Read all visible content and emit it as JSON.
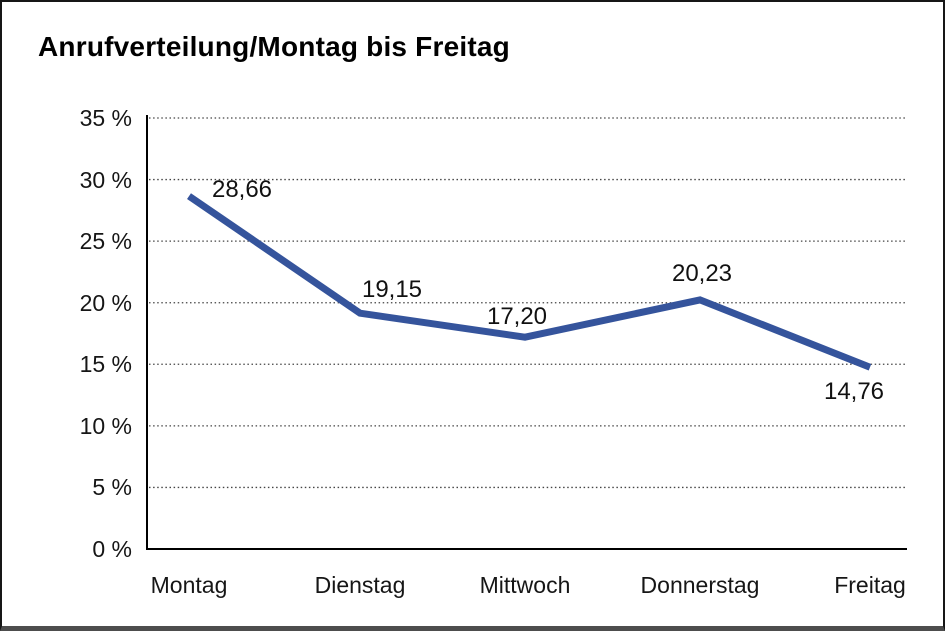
{
  "window": {
    "title": "Anrufverteilung/Montag bis Freitag"
  },
  "chart_data": {
    "type": "line",
    "title": "Anrufverteilung/Montag bis Freitag",
    "categories": [
      "Montag",
      "Dienstag",
      "Mittwoch",
      "Donnerstag",
      "Freitag"
    ],
    "series": [
      {
        "name": "Anrufverteilung",
        "values": [
          28.66,
          19.15,
          17.2,
          20.23,
          14.76
        ]
      }
    ],
    "point_labels": [
      "28,66",
      "19,15",
      "17,20",
      "20,23",
      "14,76"
    ],
    "ytick_labels": [
      "35 %",
      "30 %",
      "25 %",
      "20 %",
      "15 %",
      "10 %",
      "5 %",
      "0 %"
    ],
    "ylim": [
      0,
      35
    ],
    "ytick_step": 5,
    "xlabel": "",
    "ylabel": "",
    "legend_position": "none",
    "grid": "horizontal-dotted",
    "colors": {
      "line": "#35549C",
      "text": "#161616",
      "grid": "#444444",
      "axis": "#000000",
      "background": "#ffffff"
    }
  }
}
